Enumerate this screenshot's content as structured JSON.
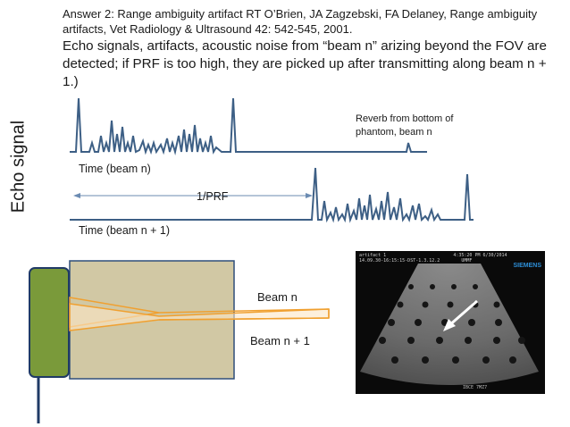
{
  "citation": "Answer 2: Range ambiguity artifact RT O’Brien, JA Zagzebski, FA Delaney, Range ambiguity artifacts, Vet Radiology & Ultrasound 42: 542-545, 2001.",
  "explanation": "Echo signals, artifacts, acoustic noise from “beam n” arizing beyond the FOV are detected; if PRF is too high, they are picked up after transmitting along beam n + 1.)",
  "y_axis_label": "Echo signal",
  "reverb_label": "Reverb from bottom of phantom, beam n",
  "time_beam_n": "Time (beam n)",
  "prf_label": "1/PRF",
  "time_beam_n1": "Time (beam n + 1)",
  "beam_n_label": "Beam n",
  "beam_n1_label": "Beam n + 1",
  "ultrasound": {
    "header": "artifact 1                         4:35:20 PM 6/30/2014\n14.09.30-16:15:15-DST-1.3.12.2        UMMF",
    "brand": "SIEMENS",
    "footer": "IBCE 7MZ7"
  },
  "colors": {
    "signal": "#3d5f85",
    "probe": "#7a9a3a",
    "phantom": "#d1c8a4",
    "beam": "#f0a030"
  }
}
